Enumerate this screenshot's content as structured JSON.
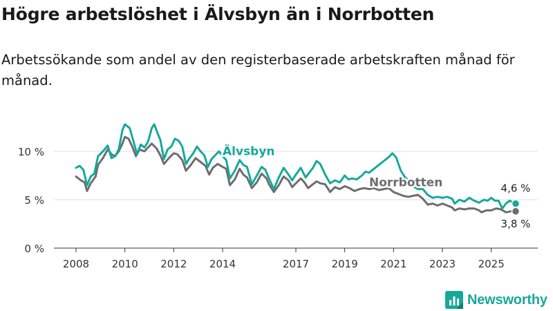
{
  "title": "Högre arbetslöshet i Älvsbyn än i Norrbotten",
  "subtitle": "Arbetssökande som andel av den registerbaserade arbetskraften månad för månad.",
  "brand": {
    "name": "Newsworthy",
    "color": "#16a89b"
  },
  "chart_data": {
    "type": "line",
    "ylim": [
      0,
      13.5
    ],
    "xlim": [
      2008.0,
      2026.0
    ],
    "yticks": [
      {
        "value": 0,
        "label": "0 %"
      },
      {
        "value": 5,
        "label": "5 %"
      },
      {
        "value": 10,
        "label": "10 %"
      }
    ],
    "xticks": [
      {
        "value": 2008,
        "label": "2008"
      },
      {
        "value": 2010,
        "label": "2010"
      },
      {
        "value": 2012,
        "label": "2012"
      },
      {
        "value": 2014,
        "label": "2014"
      },
      {
        "value": 2017,
        "label": "2017"
      },
      {
        "value": 2019,
        "label": "2019"
      },
      {
        "value": 2021,
        "label": "2021"
      },
      {
        "value": 2023,
        "label": "2023"
      },
      {
        "value": 2025,
        "label": "2025"
      }
    ],
    "grid": true,
    "series": [
      {
        "name": "Älvsbyn",
        "color": "#16a89b",
        "end_label": "4,6 %",
        "points": [
          [
            2008.0,
            8.3
          ],
          [
            2008.15,
            8.5
          ],
          [
            2008.3,
            8.1
          ],
          [
            2008.45,
            6.5
          ],
          [
            2008.6,
            7.4
          ],
          [
            2008.75,
            7.7
          ],
          [
            2008.9,
            9.5
          ],
          [
            2009.1,
            10.0
          ],
          [
            2009.3,
            10.6
          ],
          [
            2009.45,
            9.3
          ],
          [
            2009.6,
            9.5
          ],
          [
            2009.75,
            10.2
          ],
          [
            2009.9,
            12.2
          ],
          [
            2010.0,
            12.8
          ],
          [
            2010.2,
            12.4
          ],
          [
            2010.4,
            10.6
          ],
          [
            2010.5,
            9.7
          ],
          [
            2010.65,
            10.7
          ],
          [
            2010.8,
            10.4
          ],
          [
            2010.95,
            11.0
          ],
          [
            2011.1,
            12.4
          ],
          [
            2011.2,
            12.8
          ],
          [
            2011.35,
            11.8
          ],
          [
            2011.45,
            11.2
          ],
          [
            2011.6,
            9.2
          ],
          [
            2011.75,
            10.2
          ],
          [
            2011.9,
            10.5
          ],
          [
            2012.05,
            11.3
          ],
          [
            2012.2,
            11.1
          ],
          [
            2012.35,
            10.5
          ],
          [
            2012.5,
            8.7
          ],
          [
            2012.65,
            9.3
          ],
          [
            2012.8,
            9.8
          ],
          [
            2012.95,
            10.5
          ],
          [
            2013.1,
            10.0
          ],
          [
            2013.25,
            9.6
          ],
          [
            2013.4,
            8.4
          ],
          [
            2013.55,
            9.2
          ],
          [
            2013.7,
            9.6
          ],
          [
            2013.85,
            10.0
          ],
          [
            2014.0,
            9.5
          ],
          [
            2014.15,
            9.1
          ],
          [
            2014.3,
            7.2
          ],
          [
            2014.5,
            8.0
          ],
          [
            2014.7,
            9.1
          ],
          [
            2014.85,
            8.6
          ],
          [
            2015.0,
            8.4
          ],
          [
            2015.2,
            6.6
          ],
          [
            2015.4,
            7.5
          ],
          [
            2015.6,
            8.4
          ],
          [
            2015.75,
            8.1
          ],
          [
            2015.9,
            7.2
          ],
          [
            2016.1,
            6.1
          ],
          [
            2016.3,
            7.3
          ],
          [
            2016.5,
            8.3
          ],
          [
            2016.7,
            7.6
          ],
          [
            2016.85,
            7.0
          ],
          [
            2017.0,
            7.6
          ],
          [
            2017.2,
            8.3
          ],
          [
            2017.4,
            7.3
          ],
          [
            2017.55,
            7.8
          ],
          [
            2017.7,
            8.3
          ],
          [
            2017.85,
            9.0
          ],
          [
            2018.0,
            8.7
          ],
          [
            2018.2,
            7.6
          ],
          [
            2018.4,
            6.7
          ],
          [
            2018.6,
            7.0
          ],
          [
            2018.8,
            6.8
          ],
          [
            2019.0,
            7.5
          ],
          [
            2019.15,
            7.1
          ],
          [
            2019.3,
            7.2
          ],
          [
            2019.5,
            7.1
          ],
          [
            2019.7,
            7.5
          ],
          [
            2019.85,
            7.9
          ],
          [
            2020.0,
            7.8
          ],
          [
            2020.2,
            8.2
          ],
          [
            2020.4,
            8.6
          ],
          [
            2020.6,
            9.0
          ],
          [
            2020.8,
            9.4
          ],
          [
            2020.95,
            9.8
          ],
          [
            2021.1,
            9.4
          ],
          [
            2021.3,
            8.0
          ],
          [
            2021.5,
            7.2
          ],
          [
            2021.7,
            6.9
          ],
          [
            2021.85,
            6.3
          ],
          [
            2022.0,
            6.1
          ],
          [
            2022.2,
            6.1
          ],
          [
            2022.4,
            5.5
          ],
          [
            2022.6,
            5.2
          ],
          [
            2022.8,
            5.3
          ],
          [
            2023.0,
            5.2
          ],
          [
            2023.2,
            5.3
          ],
          [
            2023.4,
            5.1
          ],
          [
            2023.5,
            4.6
          ],
          [
            2023.7,
            5.0
          ],
          [
            2023.9,
            4.8
          ],
          [
            2024.1,
            5.2
          ],
          [
            2024.3,
            4.9
          ],
          [
            2024.5,
            4.7
          ],
          [
            2024.7,
            5.0
          ],
          [
            2024.85,
            4.9
          ],
          [
            2025.0,
            5.2
          ],
          [
            2025.15,
            4.9
          ],
          [
            2025.3,
            4.9
          ],
          [
            2025.45,
            4.1
          ],
          [
            2025.6,
            4.6
          ],
          [
            2025.75,
            4.9
          ],
          [
            2025.9,
            4.7
          ],
          [
            2026.0,
            4.6
          ]
        ]
      },
      {
        "name": "Norrbotten",
        "color": "#6d6d6d",
        "end_label": "3,8 %",
        "points": [
          [
            2008.0,
            7.4
          ],
          [
            2008.2,
            7.0
          ],
          [
            2008.35,
            6.8
          ],
          [
            2008.45,
            5.9
          ],
          [
            2008.6,
            6.7
          ],
          [
            2008.8,
            7.4
          ],
          [
            2008.9,
            8.6
          ],
          [
            2009.1,
            9.3
          ],
          [
            2009.3,
            10.2
          ],
          [
            2009.45,
            9.7
          ],
          [
            2009.6,
            9.5
          ],
          [
            2009.75,
            10.0
          ],
          [
            2009.9,
            10.8
          ],
          [
            2010.0,
            11.5
          ],
          [
            2010.15,
            11.3
          ],
          [
            2010.3,
            10.5
          ],
          [
            2010.45,
            9.5
          ],
          [
            2010.6,
            10.2
          ],
          [
            2010.8,
            10.0
          ],
          [
            2010.95,
            10.4
          ],
          [
            2011.1,
            10.8
          ],
          [
            2011.3,
            10.3
          ],
          [
            2011.45,
            9.6
          ],
          [
            2011.6,
            8.7
          ],
          [
            2011.8,
            9.3
          ],
          [
            2012.0,
            9.8
          ],
          [
            2012.15,
            9.7
          ],
          [
            2012.35,
            9.1
          ],
          [
            2012.5,
            8.0
          ],
          [
            2012.7,
            8.6
          ],
          [
            2012.9,
            9.3
          ],
          [
            2013.1,
            8.9
          ],
          [
            2013.3,
            8.5
          ],
          [
            2013.45,
            7.6
          ],
          [
            2013.6,
            8.3
          ],
          [
            2013.8,
            8.7
          ],
          [
            2014.0,
            8.4
          ],
          [
            2014.15,
            8.2
          ],
          [
            2014.3,
            6.5
          ],
          [
            2014.5,
            7.1
          ],
          [
            2014.7,
            8.2
          ],
          [
            2014.85,
            7.6
          ],
          [
            2015.0,
            7.3
          ],
          [
            2015.2,
            6.2
          ],
          [
            2015.4,
            6.8
          ],
          [
            2015.6,
            7.7
          ],
          [
            2015.8,
            7.2
          ],
          [
            2015.9,
            6.6
          ],
          [
            2016.1,
            5.8
          ],
          [
            2016.3,
            6.5
          ],
          [
            2016.5,
            7.4
          ],
          [
            2016.7,
            7.0
          ],
          [
            2016.85,
            6.3
          ],
          [
            2017.0,
            6.7
          ],
          [
            2017.2,
            7.2
          ],
          [
            2017.35,
            6.8
          ],
          [
            2017.5,
            6.2
          ],
          [
            2017.7,
            6.6
          ],
          [
            2017.85,
            6.9
          ],
          [
            2018.0,
            6.7
          ],
          [
            2018.2,
            6.6
          ],
          [
            2018.4,
            5.8
          ],
          [
            2018.6,
            6.3
          ],
          [
            2018.8,
            6.1
          ],
          [
            2019.0,
            6.4
          ],
          [
            2019.2,
            6.2
          ],
          [
            2019.4,
            5.9
          ],
          [
            2019.6,
            6.1
          ],
          [
            2019.8,
            6.2
          ],
          [
            2020.0,
            6.1
          ],
          [
            2020.2,
            6.2
          ],
          [
            2020.4,
            6.0
          ],
          [
            2020.6,
            6.1
          ],
          [
            2020.8,
            6.2
          ],
          [
            2021.0,
            5.8
          ],
          [
            2021.2,
            5.6
          ],
          [
            2021.4,
            5.4
          ],
          [
            2021.6,
            5.3
          ],
          [
            2021.8,
            5.4
          ],
          [
            2022.0,
            5.5
          ],
          [
            2022.2,
            5.1
          ],
          [
            2022.4,
            4.5
          ],
          [
            2022.6,
            4.6
          ],
          [
            2022.8,
            4.4
          ],
          [
            2023.0,
            4.6
          ],
          [
            2023.2,
            4.4
          ],
          [
            2023.4,
            4.2
          ],
          [
            2023.5,
            3.9
          ],
          [
            2023.7,
            4.1
          ],
          [
            2023.9,
            4.0
          ],
          [
            2024.1,
            4.1
          ],
          [
            2024.3,
            4.1
          ],
          [
            2024.5,
            3.9
          ],
          [
            2024.6,
            3.7
          ],
          [
            2024.8,
            3.9
          ],
          [
            2025.0,
            3.9
          ],
          [
            2025.2,
            4.1
          ],
          [
            2025.4,
            4.0
          ],
          [
            2025.6,
            3.7
          ],
          [
            2025.8,
            3.8
          ],
          [
            2026.0,
            3.8
          ]
        ]
      }
    ],
    "annotations": [
      {
        "series": "Älvsbyn",
        "text": "Älvsbyn",
        "at": [
          2014.0,
          9.6
        ]
      },
      {
        "series": "Norrbotten",
        "text": "Norrbotten",
        "at": [
          2020.0,
          6.4
        ]
      }
    ]
  }
}
